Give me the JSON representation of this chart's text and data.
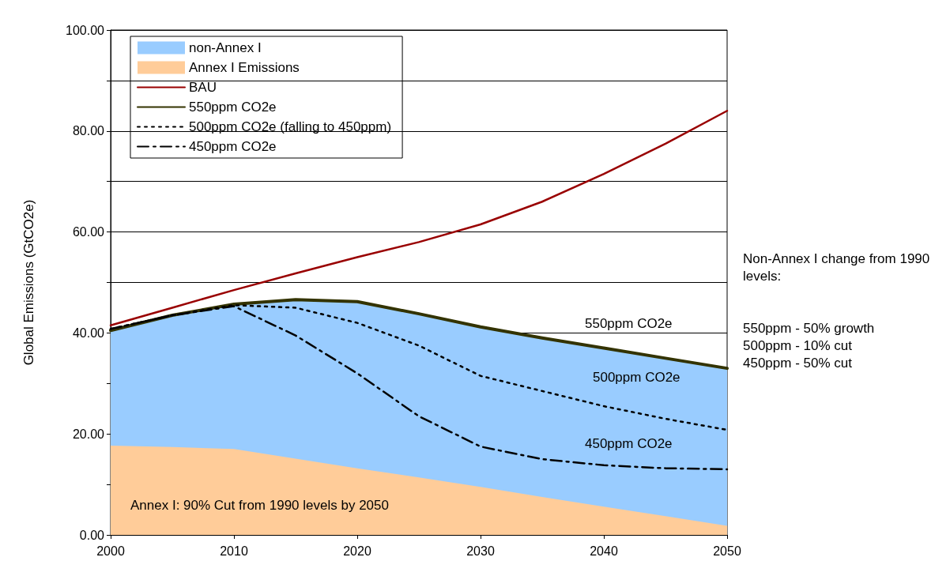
{
  "chart_data": {
    "type": "line",
    "ylabel": "Global Emissions (GtCO2e)",
    "stacked": true,
    "x": [
      2000,
      2005,
      2010,
      2015,
      2020,
      2025,
      2030,
      2035,
      2040,
      2045,
      2050
    ],
    "series": [
      {
        "name": "Annex I Emissions",
        "type": "area",
        "color": "#ffcc99",
        "values": [
          17.7,
          17.4,
          17.0,
          15.1,
          13.2,
          11.4,
          9.5,
          7.5,
          5.6,
          3.7,
          1.8
        ]
      },
      {
        "name": "non-Annex I",
        "type": "area",
        "color": "#99ccff",
        "values": [
          22.8,
          26.1,
          28.7,
          31.5,
          33.0,
          32.4,
          31.7,
          31.5,
          31.4,
          31.3,
          31.2
        ]
      },
      {
        "name": "BAU",
        "color": "#990000",
        "line_style": "solid",
        "values": [
          41.5,
          45,
          48.5,
          51.8,
          55,
          58,
          61.5,
          66,
          71.5,
          77.5,
          84
        ]
      },
      {
        "name": "550ppm CO2e",
        "color": "#333300",
        "line_style": "solid",
        "values": [
          40.5,
          43.5,
          45.7,
          46.6,
          46.2,
          43.8,
          41.2,
          39.0,
          37.0,
          35.0,
          33.0
        ]
      },
      {
        "name": "500ppm CO2e (falling to 450ppm)",
        "color": "#000000",
        "line_style": "dotted",
        "values": [
          40.8,
          43.5,
          45.5,
          45.0,
          42,
          37.5,
          31.5,
          28.5,
          25.5,
          23,
          20.8
        ]
      },
      {
        "name": "450ppm CO2e",
        "color": "#000000",
        "line_style": "dashed",
        "values": [
          40.8,
          43.5,
          45.3,
          39.5,
          32,
          23.5,
          17.5,
          15,
          13.8,
          13.2,
          13
        ]
      }
    ],
    "xlim": [
      2000,
      2050
    ],
    "xticks": [
      2000,
      2010,
      2020,
      2030,
      2040,
      2050
    ],
    "ylim": [
      0,
      100
    ],
    "yticks": [
      {
        "value": 0,
        "label": "0.00"
      },
      {
        "value": 10,
        "label": null
      },
      {
        "value": 20,
        "label": "20.00"
      },
      {
        "value": 30,
        "label": null
      },
      {
        "value": 40,
        "label": "40.00"
      },
      {
        "value": 50,
        "label": null
      },
      {
        "value": 60,
        "label": "60.00"
      },
      {
        "value": 70,
        "label": null
      },
      {
        "value": 80,
        "label": "80.00"
      },
      {
        "value": 90,
        "label": null
      },
      {
        "value": 100,
        "label": "100.00"
      }
    ],
    "grid": "y",
    "legend": "top left",
    "marker": "none",
    "annotations": [
      "550ppm CO2e",
      "500ppm CO2e",
      "450ppm CO2e",
      "Annex I: 90% Cut from 1990 levels by 2050",
      "Non-Annex I change from 1990 levels:",
      "550ppm - 50% growth",
      "500ppm - 10% cut",
      "450ppm - 50% cut"
    ]
  }
}
